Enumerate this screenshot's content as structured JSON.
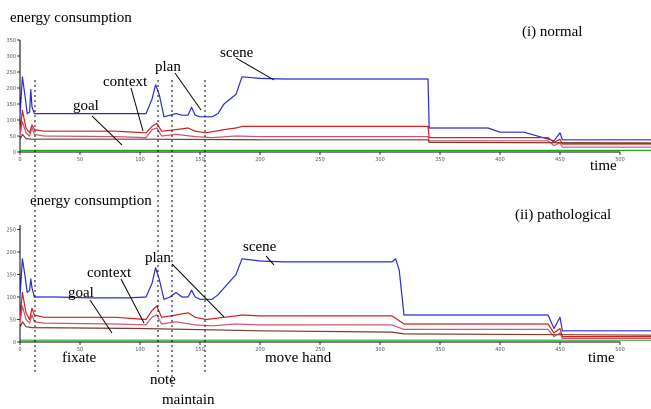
{
  "chart_data": [
    {
      "type": "line",
      "title": "(i) normal",
      "ylabel": "energy consumption",
      "xlabel": "time",
      "x_ticks": [
        "0",
        "50",
        "100",
        "150",
        "200",
        "250",
        "300",
        "350",
        "400",
        "450",
        "500"
      ],
      "y_ticks": [
        "0",
        "50",
        "100",
        "150",
        "200",
        "250",
        "300",
        "350"
      ],
      "xlim": [
        0,
        500
      ],
      "ylim": [
        0,
        350
      ],
      "series": [
        {
          "name": "scene",
          "color": "#2b2bcc",
          "points": [
            [
              0,
              110
            ],
            [
              2,
              235
            ],
            [
              4,
              180
            ],
            [
              6,
              120
            ],
            [
              8,
              125
            ],
            [
              9,
              195
            ],
            [
              10,
              140
            ],
            [
              12,
              120
            ],
            [
              30,
              120
            ],
            [
              60,
              120
            ],
            [
              90,
              120
            ],
            [
              105,
              120
            ],
            [
              110,
              165
            ],
            [
              113,
              210
            ],
            [
              116,
              180
            ],
            [
              120,
              110
            ],
            [
              125,
              115
            ],
            [
              130,
              120
            ],
            [
              135,
              115
            ],
            [
              140,
              115
            ],
            [
              143,
              140
            ],
            [
              146,
              115
            ],
            [
              150,
              110
            ],
            [
              160,
              110
            ],
            [
              165,
              120
            ],
            [
              170,
              150
            ],
            [
              180,
              180
            ],
            [
              185,
              235
            ],
            [
              200,
              230
            ],
            [
              220,
              228
            ],
            [
              300,
              228
            ],
            [
              330,
              228
            ],
            [
              340,
              228
            ],
            [
              341,
              75
            ],
            [
              380,
              75
            ],
            [
              390,
              75
            ],
            [
              400,
              62
            ],
            [
              420,
              62
            ],
            [
              445,
              35
            ],
            [
              450,
              60
            ],
            [
              452,
              38
            ],
            [
              460,
              38
            ],
            [
              500,
              38
            ],
            [
              548,
              38
            ]
          ]
        },
        {
          "name": "plan",
          "color": "#cc2222",
          "points": [
            [
              0,
              60
            ],
            [
              2,
              130
            ],
            [
              5,
              75
            ],
            [
              8,
              60
            ],
            [
              10,
              85
            ],
            [
              12,
              70
            ],
            [
              20,
              65
            ],
            [
              80,
              65
            ],
            [
              105,
              60
            ],
            [
              110,
              80
            ],
            [
              114,
              90
            ],
            [
              118,
              65
            ],
            [
              130,
              70
            ],
            [
              140,
              75
            ],
            [
              146,
              65
            ],
            [
              155,
              60
            ],
            [
              170,
              70
            ],
            [
              180,
              75
            ],
            [
              185,
              80
            ],
            [
              200,
              80
            ],
            [
              340,
              80
            ],
            [
              341,
              45
            ],
            [
              440,
              45
            ],
            [
              445,
              30
            ],
            [
              450,
              40
            ],
            [
              452,
              25
            ],
            [
              548,
              25
            ]
          ]
        },
        {
          "name": "context",
          "color": "#cc5577",
          "points": [
            [
              0,
              50
            ],
            [
              2,
              95
            ],
            [
              5,
              60
            ],
            [
              8,
              50
            ],
            [
              10,
              75
            ],
            [
              12,
              55
            ],
            [
              20,
              50
            ],
            [
              80,
              48
            ],
            [
              105,
              45
            ],
            [
              110,
              70
            ],
            [
              114,
              75
            ],
            [
              118,
              50
            ],
            [
              130,
              55
            ],
            [
              146,
              48
            ],
            [
              160,
              45
            ],
            [
              180,
              50
            ],
            [
              200,
              48
            ],
            [
              340,
              48
            ],
            [
              341,
              35
            ],
            [
              440,
              35
            ],
            [
              445,
              20
            ],
            [
              450,
              28
            ],
            [
              452,
              15
            ],
            [
              548,
              15
            ]
          ]
        },
        {
          "name": "goal",
          "color": "#7a3a2a",
          "points": [
            [
              0,
              40
            ],
            [
              2,
              55
            ],
            [
              5,
              42
            ],
            [
              10,
              40
            ],
            [
              100,
              40
            ],
            [
              200,
              38
            ],
            [
              340,
              38
            ],
            [
              341,
              30
            ],
            [
              548,
              28
            ]
          ]
        },
        {
          "name": "",
          "color": "#22aa22",
          "points": [
            [
              0,
              5
            ],
            [
              548,
              5
            ]
          ]
        }
      ],
      "labels": [
        "scene",
        "plan",
        "context",
        "goal"
      ]
    },
    {
      "type": "line",
      "title": "(ii) pathological",
      "ylabel": "energy consumption",
      "xlabel": "time",
      "x_ticks": [
        "0",
        "50",
        "100",
        "150",
        "200",
        "250",
        "300",
        "350",
        "400",
        "450",
        "500"
      ],
      "y_ticks": [
        "0",
        "50",
        "100",
        "150",
        "200",
        "250"
      ],
      "xlim": [
        0,
        500
      ],
      "ylim": [
        0,
        260
      ],
      "series": [
        {
          "name": "scene",
          "color": "#2b2bcc",
          "points": [
            [
              0,
              100
            ],
            [
              2,
              185
            ],
            [
              4,
              150
            ],
            [
              6,
              110
            ],
            [
              8,
              115
            ],
            [
              9,
              140
            ],
            [
              10,
              120
            ],
            [
              12,
              100
            ],
            [
              30,
              100
            ],
            [
              60,
              98
            ],
            [
              90,
              98
            ],
            [
              105,
              100
            ],
            [
              110,
              130
            ],
            [
              113,
              165
            ],
            [
              116,
              140
            ],
            [
              120,
              95
            ],
            [
              125,
              100
            ],
            [
              130,
              110
            ],
            [
              135,
              100
            ],
            [
              140,
              100
            ],
            [
              143,
              115
            ],
            [
              146,
              100
            ],
            [
              150,
              95
            ],
            [
              160,
              95
            ],
            [
              165,
              105
            ],
            [
              170,
              120
            ],
            [
              180,
              150
            ],
            [
              185,
              185
            ],
            [
              200,
              180
            ],
            [
              220,
              178
            ],
            [
              300,
              178
            ],
            [
              310,
              178
            ],
            [
              313,
              185
            ],
            [
              316,
              160
            ],
            [
              320,
              60
            ],
            [
              380,
              60
            ],
            [
              390,
              60
            ],
            [
              400,
              60
            ],
            [
              440,
              60
            ],
            [
              445,
              30
            ],
            [
              450,
              55
            ],
            [
              452,
              25
            ],
            [
              460,
              25
            ],
            [
              500,
              25
            ],
            [
              548,
              25
            ]
          ]
        },
        {
          "name": "plan",
          "color": "#cc2222",
          "points": [
            [
              0,
              50
            ],
            [
              2,
              110
            ],
            [
              5,
              65
            ],
            [
              8,
              50
            ],
            [
              10,
              75
            ],
            [
              12,
              60
            ],
            [
              20,
              55
            ],
            [
              80,
              55
            ],
            [
              105,
              50
            ],
            [
              110,
              70
            ],
            [
              114,
              80
            ],
            [
              118,
              55
            ],
            [
              130,
              60
            ],
            [
              140,
              65
            ],
            [
              146,
              55
            ],
            [
              155,
              50
            ],
            [
              170,
              55
            ],
            [
              180,
              58
            ],
            [
              185,
              60
            ],
            [
              200,
              58
            ],
            [
              310,
              58
            ],
            [
              320,
              40
            ],
            [
              440,
              40
            ],
            [
              445,
              20
            ],
            [
              450,
              30
            ],
            [
              452,
              12
            ],
            [
              548,
              12
            ]
          ]
        },
        {
          "name": "context",
          "color": "#cc5577",
          "points": [
            [
              0,
              40
            ],
            [
              2,
              80
            ],
            [
              5,
              50
            ],
            [
              8,
              42
            ],
            [
              10,
              60
            ],
            [
              12,
              45
            ],
            [
              20,
              42
            ],
            [
              80,
              40
            ],
            [
              105,
              38
            ],
            [
              110,
              55
            ],
            [
              114,
              60
            ],
            [
              118,
              40
            ],
            [
              130,
              45
            ],
            [
              146,
              38
            ],
            [
              160,
              36
            ],
            [
              180,
              40
            ],
            [
              200,
              38
            ],
            [
              310,
              38
            ],
            [
              320,
              28
            ],
            [
              440,
              28
            ],
            [
              445,
              12
            ],
            [
              450,
              20
            ],
            [
              452,
              8
            ],
            [
              548,
              8
            ]
          ]
        },
        {
          "name": "goal",
          "color": "#7a3a2a",
          "points": [
            [
              0,
              32
            ],
            [
              2,
              45
            ],
            [
              5,
              34
            ],
            [
              10,
              32
            ],
            [
              100,
              30
            ],
            [
              200,
              25
            ],
            [
              310,
              22
            ],
            [
              320,
              18
            ],
            [
              548,
              15
            ]
          ]
        },
        {
          "name": "",
          "color": "#22aa22",
          "points": [
            [
              0,
              4
            ],
            [
              548,
              4
            ]
          ]
        }
      ],
      "labels": [
        "scene",
        "plan",
        "context",
        "goal"
      ],
      "phases": [
        "fixate",
        "note",
        "maintain",
        "move hand"
      ]
    }
  ]
}
